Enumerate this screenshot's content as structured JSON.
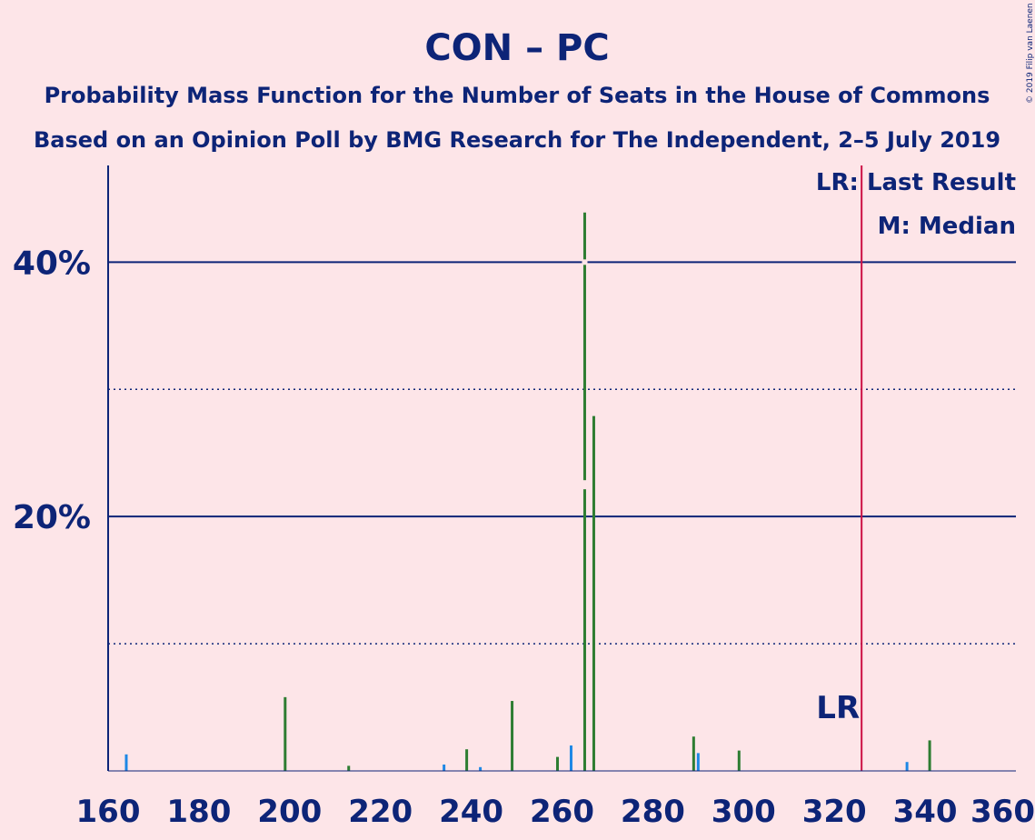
{
  "chart_data": {
    "type": "bar",
    "title": "CON – PC",
    "subtitle_line1": "Probability Mass Function for the Number of Seats in the House of Commons",
    "subtitle_line2": "Based on an Opinion Poll by BMG Research for The Independent, 2–5 July 2019",
    "copyright": "© 2019 Filip van Laenen",
    "legend": {
      "lr": "LR: Last Result",
      "median": "M: Median",
      "placement": "top-right"
    },
    "last_result": {
      "seats": 326,
      "label": "LR"
    },
    "median": {
      "seats": 265,
      "label": "M"
    },
    "xlim": [
      160,
      360
    ],
    "ylim": [
      0,
      47.6
    ],
    "x_ticks": [
      "160",
      "180",
      "200",
      "220",
      "240",
      "260",
      "280",
      "300",
      "320",
      "340",
      "360"
    ],
    "y_ticks_major": [
      {
        "value": 20,
        "label": "20%"
      },
      {
        "value": 40,
        "label": "40%"
      }
    ],
    "y_ticks_minor": [
      10,
      30
    ],
    "colors": {
      "background": "#fde5e8",
      "text": "#0d2477",
      "green_bar": "#2e7d32",
      "blue_bar": "#1e88e5",
      "last_result_line": "#cc1144"
    },
    "series": [
      {
        "color": "green",
        "x": [
          199,
          213,
          239,
          249,
          259,
          265,
          267,
          289,
          299,
          341
        ],
        "values": [
          5.8,
          0.4,
          1.7,
          5.5,
          1.1,
          43.9,
          27.9,
          2.7,
          1.6,
          2.4
        ]
      },
      {
        "color": "blue",
        "x": [
          164,
          234,
          242,
          262,
          290,
          336
        ],
        "values": [
          1.3,
          0.5,
          0.3,
          2.0,
          1.4,
          0.7
        ]
      }
    ]
  }
}
